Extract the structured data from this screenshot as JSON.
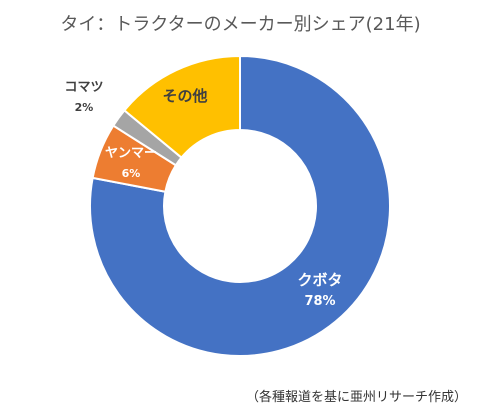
{
  "chart_data": {
    "type": "pie",
    "variant": "donut",
    "title": "タイ：トラクターのメーカー別シェア(21年)",
    "source": "（各種報道を基に亜州リサーチ作成）",
    "slices": [
      {
        "label": "クボタ",
        "value": 78,
        "value_label": "78%",
        "color": "#4472C4"
      },
      {
        "label": "ヤンマー",
        "value": 6,
        "value_label": "6%",
        "color": "#ED7D31"
      },
      {
        "label": "コマツ",
        "value": 2,
        "value_label": "2%",
        "color": "#A5A5A5"
      },
      {
        "label": "その他",
        "value": 14,
        "value_label": "",
        "color": "#FFC000"
      }
    ],
    "start_angle_deg": 0,
    "direction": "clockwise",
    "legend": "none"
  }
}
